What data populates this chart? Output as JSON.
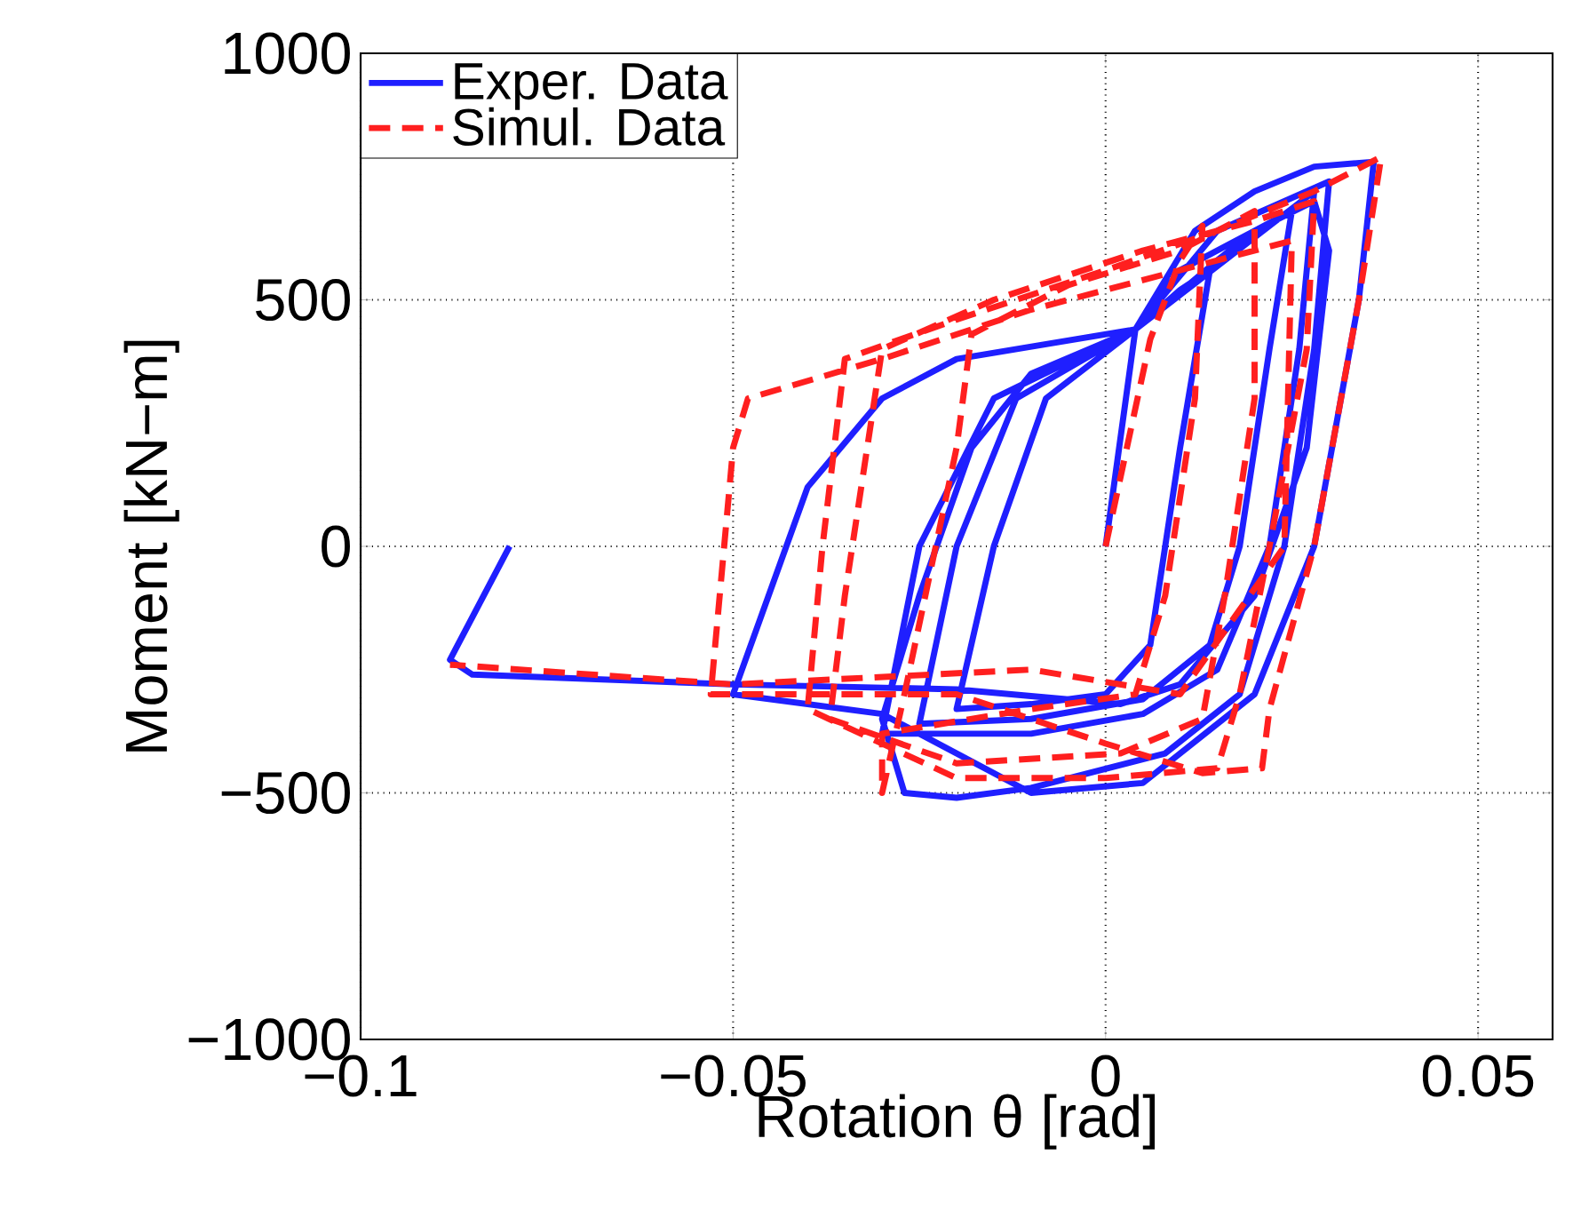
{
  "chart_data": {
    "type": "line",
    "xlabel": "Rotation θ [rad]",
    "ylabel": "Moment [kN−m]",
    "xlim": [
      -0.1,
      0.06
    ],
    "xticks": [
      {
        "value": -0.1,
        "label": "−0.1"
      },
      {
        "value": -0.05,
        "label": "−0.05"
      },
      0,
      0.05
    ],
    "ylim": [
      -1000,
      1000
    ],
    "yticks": [
      {
        "value": -1000,
        "label": "−1000"
      },
      {
        "value": -500,
        "label": "−500"
      },
      0,
      500,
      1000
    ],
    "grid": true,
    "legend": "top left",
    "marker": "none",
    "series": [
      {
        "name": "Exper. Data",
        "color": "#1f1fff",
        "line_style": "solid",
        "x": [
          0,
          0.004,
          0.01,
          0.014,
          0.01,
          0.006,
          0,
          -0.01,
          -0.02,
          -0.015,
          -0.008,
          0.004,
          0.015,
          0.02,
          0.025,
          0.022,
          0.018,
          0.014,
          0.005,
          -0.01,
          -0.025,
          -0.02,
          -0.012,
          0.004,
          0.028,
          0.026,
          0.022,
          0.015,
          0.005,
          -0.01,
          -0.03,
          -0.025,
          -0.015,
          0.004,
          0.015,
          0.03,
          0.028,
          0.024,
          0.018,
          0.008,
          -0.01,
          -0.02,
          -0.027,
          -0.03,
          -0.025,
          -0.018,
          -0.01,
          0.004,
          0.012,
          0.02,
          0.028,
          0.036,
          0.034,
          0.028,
          0.02,
          0.005,
          -0.01,
          -0.03,
          -0.05,
          -0.04,
          -0.03,
          -0.02,
          0.004,
          0.01,
          0.02,
          0.028,
          0.03,
          0.027,
          0.02,
          0.01,
          0.002,
          -0.02,
          -0.05,
          -0.085,
          -0.088,
          -0.08
        ],
        "values": [
          0,
          440,
          520,
          560,
          200,
          -200,
          -300,
          -320,
          -330,
          0,
          300,
          440,
          580,
          640,
          680,
          400,
          0,
          -200,
          -310,
          -350,
          -360,
          0,
          300,
          440,
          720,
          400,
          0,
          -250,
          -340,
          -380,
          -380,
          0,
          300,
          440,
          640,
          740,
          400,
          0,
          -300,
          -420,
          -490,
          -510,
          -500,
          -350,
          -100,
          200,
          350,
          440,
          640,
          720,
          770,
          780,
          500,
          0,
          -300,
          -480,
          -500,
          -340,
          -300,
          120,
          300,
          380,
          440,
          560,
          640,
          700,
          600,
          200,
          -100,
          -280,
          -320,
          -290,
          -280,
          -260,
          -230,
          0
        ]
      },
      {
        "name": "Simul. Data",
        "color": "#ff1f1f",
        "line_style": "dashed",
        "x": [
          0,
          0.006,
          0.01,
          0.013,
          0.012,
          0.008,
          0.004,
          -0.01,
          -0.03,
          -0.03,
          -0.027,
          -0.02,
          -0.018,
          -0.005,
          0.01,
          0.02,
          0.02,
          0.016,
          0.013,
          0.002,
          -0.02,
          -0.037,
          -0.035,
          -0.03,
          -0.015,
          0.005,
          0.02,
          0.028,
          0.027,
          0.022,
          0.018,
          0.015,
          0,
          -0.02,
          -0.04,
          -0.038,
          -0.035,
          -0.02,
          0,
          0.015,
          0.028,
          0.037,
          0.034,
          0.028,
          0.022,
          0.021,
          0.013,
          0,
          -0.02,
          -0.053,
          -0.05,
          -0.048,
          -0.03,
          -0.01,
          0.01,
          0.025,
          0.024,
          0.01,
          -0.01,
          -0.05,
          -0.088
        ],
        "values": [
          0,
          420,
          580,
          650,
          300,
          -100,
          -300,
          -330,
          -380,
          -500,
          -300,
          200,
          430,
          530,
          600,
          680,
          300,
          -100,
          -350,
          -420,
          -440,
          -350,
          -100,
          400,
          500,
          600,
          660,
          700,
          400,
          0,
          -300,
          -450,
          -470,
          -470,
          -330,
          0,
          380,
          460,
          560,
          640,
          720,
          790,
          500,
          0,
          -330,
          -450,
          -460,
          -400,
          -300,
          -300,
          200,
          300,
          380,
          480,
          560,
          620,
          0,
          -300,
          -250,
          -280,
          -240
        ]
      }
    ]
  }
}
